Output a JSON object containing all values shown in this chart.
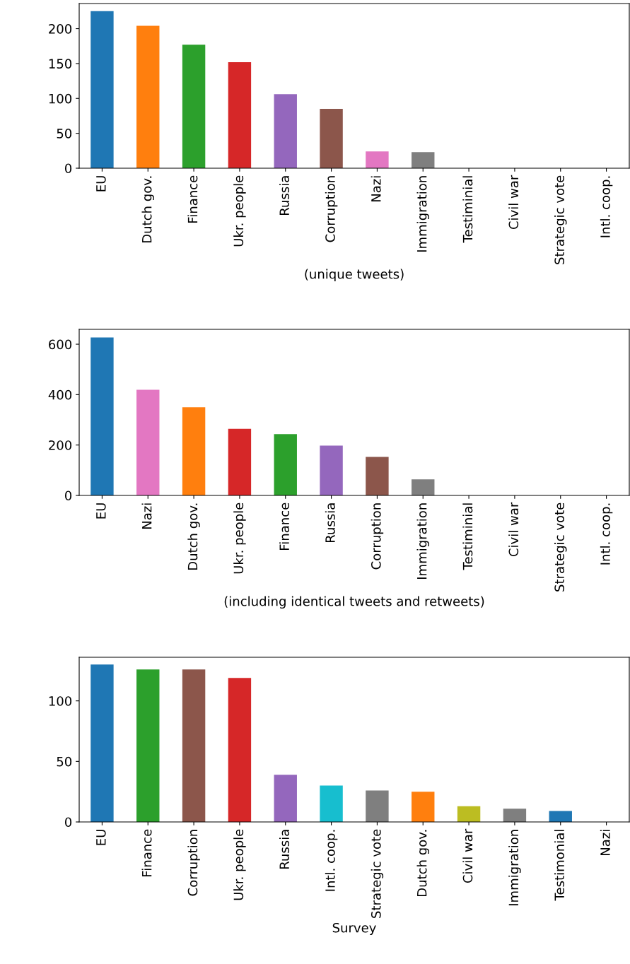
{
  "chart_data": [
    {
      "type": "bar",
      "xlabel": "(unique tweets)",
      "categories": [
        "EU",
        "Dutch gov.",
        "Finance",
        "Ukr. people",
        "Russia",
        "Corruption",
        "Nazi",
        "Immigration",
        "Testiminial",
        "Civil war",
        "Strategic vote",
        "Intl. coop."
      ],
      "values": [
        225,
        204,
        177,
        152,
        106,
        85,
        24,
        23,
        0,
        0,
        0,
        0
      ],
      "colors": [
        "#1f77b4",
        "#ff7f0e",
        "#2ca02c",
        "#d62728",
        "#9467bd",
        "#8c564b",
        "#e377c2",
        "#7f7f7f",
        "#bcbd22",
        "#17becf",
        "#1f77b4",
        "#ff7f0e"
      ],
      "ylim": [
        0,
        236
      ],
      "yticks": [
        0,
        50,
        100,
        150,
        200
      ]
    },
    {
      "type": "bar",
      "xlabel": "(including identical tweets and retweets)",
      "categories": [
        "EU",
        "Nazi",
        "Dutch gov.",
        "Ukr. people",
        "Finance",
        "Russia",
        "Corruption",
        "Immigration",
        "Testiminial",
        "Civil war",
        "Strategic vote",
        "Intl. coop."
      ],
      "values": [
        627,
        419,
        350,
        264,
        243,
        198,
        153,
        64,
        0,
        0,
        0,
        0
      ],
      "colors": [
        "#1f77b4",
        "#e377c2",
        "#ff7f0e",
        "#d62728",
        "#2ca02c",
        "#9467bd",
        "#8c564b",
        "#7f7f7f",
        "#bcbd22",
        "#17becf",
        "#1f77b4",
        "#ff7f0e"
      ],
      "ylim": [
        0,
        659
      ],
      "yticks": [
        0,
        200,
        400,
        600
      ]
    },
    {
      "type": "bar",
      "xlabel": "Survey",
      "categories": [
        "EU",
        "Finance",
        "Corruption",
        "Ukr. people",
        "Russia",
        "Intl. coop.",
        "Strategic vote",
        "Dutch gov.",
        "Civil war",
        "Immigration",
        "Testimonial",
        "Nazi"
      ],
      "values": [
        130,
        126,
        126,
        119,
        39,
        30,
        26,
        25,
        13,
        11,
        9,
        0
      ],
      "colors": [
        "#1f77b4",
        "#2ca02c",
        "#8c564b",
        "#d62728",
        "#9467bd",
        "#17becf",
        "#7f7f7f",
        "#ff7f0e",
        "#bcbd22",
        "#7f7f7f",
        "#1f77b4",
        "#e377c2"
      ],
      "ylim": [
        0,
        136
      ],
      "yticks": [
        0,
        50,
        100
      ]
    }
  ]
}
